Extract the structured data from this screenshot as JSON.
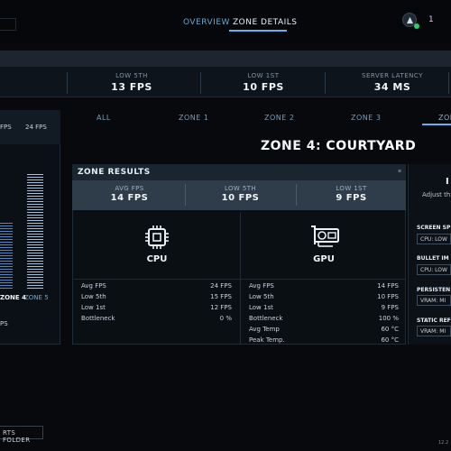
{
  "nav": {
    "tabs": [
      "OVERVIEW",
      "ZONE DETAILS"
    ],
    "active": "ZONE DETAILS",
    "top_count": "1"
  },
  "strip": [
    {
      "label": "LOW 5TH",
      "value": "13 FPS"
    },
    {
      "label": "LOW 1ST",
      "value": "10 FPS"
    },
    {
      "label": "SERVER LATENCY",
      "value": "34 MS"
    }
  ],
  "left_panel": {
    "header_vals": [
      "FPS",
      "24 FPS"
    ],
    "zone_labels": [
      "ZONE 4",
      "ZONE 5"
    ],
    "fps_frag": "PS",
    "chart": {
      "type": "bar",
      "categories": [
        "ZONE 4",
        "ZONE 5"
      ],
      "values": [
        14,
        24
      ],
      "ylim": [
        0,
        26
      ]
    }
  },
  "zone_tabs": [
    "ALL",
    "ZONE 1",
    "ZONE 2",
    "ZONE 3",
    "ZONE"
  ],
  "zone_title": {
    "prefix": "ZONE 4:",
    "name": "COURTYARD"
  },
  "results": {
    "title": "ZONE RESULTS",
    "summary": [
      {
        "label": "AVG FPS",
        "value": "14 FPS"
      },
      {
        "label": "LOW 5TH",
        "value": "10 FPS"
      },
      {
        "label": "LOW 1ST",
        "value": "9 FPS"
      }
    ],
    "cpu": {
      "label": "CPU",
      "rows": [
        {
          "k": "Avg FPS",
          "v": "24 FPS"
        },
        {
          "k": "Low 5th",
          "v": "15 FPS"
        },
        {
          "k": "Low 1st",
          "v": "12 FPS"
        },
        {
          "k": "Bottleneck",
          "v": "0 %"
        }
      ]
    },
    "gpu": {
      "label": "GPU",
      "rows": [
        {
          "k": "Avg FPS",
          "v": "14 FPS"
        },
        {
          "k": "Low 5th",
          "v": "10 FPS"
        },
        {
          "k": "Low 1st",
          "v": "9 FPS"
        },
        {
          "k": "Bottleneck",
          "v": "100 %"
        },
        {
          "k": "Avg Temp",
          "v": "60 °C"
        },
        {
          "k": "Peak Temp.",
          "v": "60 °C"
        }
      ]
    }
  },
  "right_panel": {
    "header": "I",
    "sub": "Adjust th",
    "settings": [
      {
        "label": "SCREEN SP",
        "value": "CPU: LOW"
      },
      {
        "label": "BULLET IM",
        "value": "CPU: LOW"
      },
      {
        "label": "PERSISTEN",
        "value": "VRAM: MI"
      },
      {
        "label": "STATIC REF",
        "value": "VRAM: MI"
      }
    ]
  },
  "footer": {
    "folder_button": "RTS FOLDER",
    "version": "12.2"
  },
  "colors": {
    "accent": "#5fb4f0",
    "bar": "#4e86c8",
    "bar_light": "#a9bfd9",
    "status_ok": "#2ecc71"
  }
}
